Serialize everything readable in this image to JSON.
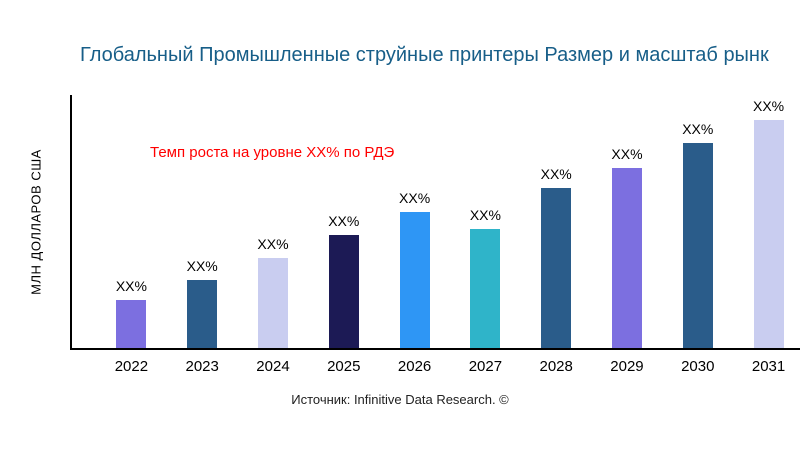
{
  "chart_data": {
    "type": "bar",
    "title": "Глобальный Промышленные струйные принтеры Размер и масштаб рынк",
    "title_color": "#175E88",
    "ylabel": "МЛН ДОЛЛАРОВ США",
    "xlabel": "",
    "categories": [
      "2022",
      "2023",
      "2024",
      "2025",
      "2026",
      "2027",
      "2028",
      "2029",
      "2030",
      "2031"
    ],
    "values": [
      48,
      68,
      90,
      113,
      136,
      119,
      160,
      180,
      205,
      228
    ],
    "values_note": "relative bar heights estimated from pixels; numeric values not labeled on chart",
    "bar_labels": [
      "XX%",
      "XX%",
      "XX%",
      "XX%",
      "XX%",
      "XX%",
      "XX%",
      "XX%",
      "XX%",
      "XX%"
    ],
    "bar_colors": [
      "#7C6FE0",
      "#2A5C8A",
      "#C9CDF0",
      "#1C1A55",
      "#2E96F5",
      "#2FB4C9",
      "#2A5C8A",
      "#7C6FE0",
      "#2A5C8A",
      "#C9CDF0"
    ],
    "annotation": "Темп роста на уровне XX% по РДЭ",
    "annotation_color": "#FF0000",
    "source": "Источник: Infinitive Data Research. ©",
    "grid": false,
    "legend": false,
    "axis_color": "#000000",
    "background": "#FFFFFF"
  }
}
